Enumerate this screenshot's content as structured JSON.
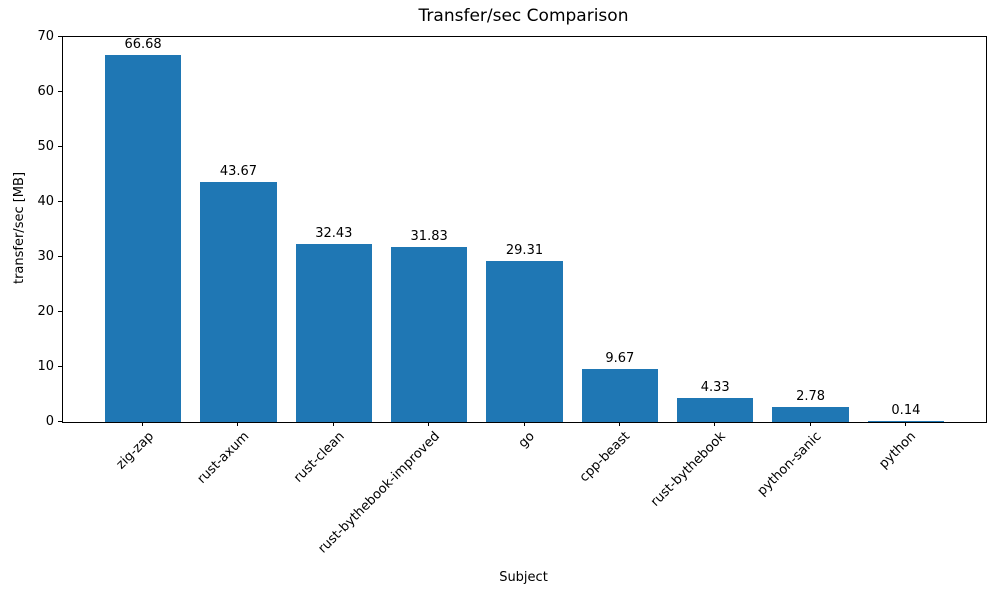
{
  "chart_data": {
    "type": "bar",
    "title": "Transfer/sec Comparison",
    "xlabel": "Subject",
    "ylabel": "transfer/sec [MB]",
    "categories": [
      "zig-zap",
      "rust-axum",
      "rust-clean",
      "rust-bythebook-improved",
      "go",
      "cpp-beast",
      "rust-bythebook",
      "python-sanic",
      "python"
    ],
    "values": [
      66.68,
      43.67,
      32.43,
      31.83,
      29.31,
      9.67,
      4.33,
      2.78,
      0.14
    ],
    "bar_labels": [
      "66.68",
      "43.67",
      "32.43",
      "31.83",
      "29.31",
      "9.67",
      "4.33",
      "2.78",
      "0.14"
    ],
    "yticks": [
      0,
      10,
      20,
      30,
      40,
      50,
      60,
      70
    ],
    "ylim": [
      0,
      70
    ],
    "bar_color": "#1f77b4",
    "grid": false,
    "legend": null,
    "x_tick_rotation": 45
  }
}
